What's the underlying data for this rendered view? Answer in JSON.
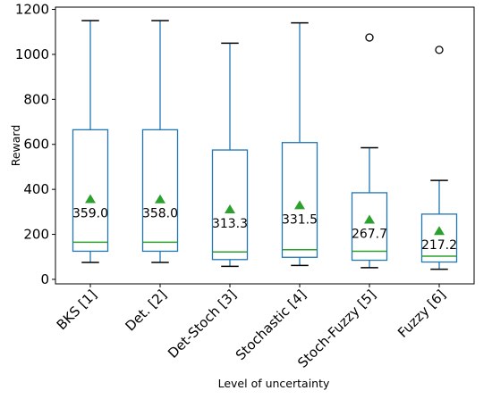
{
  "chart_data": {
    "type": "box",
    "xlabel": "Level of uncertainty",
    "ylabel": "Reward",
    "ylim": [
      -20,
      1210
    ],
    "yticks": [
      0,
      200,
      400,
      600,
      800,
      1000,
      1200
    ],
    "grid": false,
    "legend": "none",
    "categories": [
      "BKS [1]",
      "Det. [2]",
      "Det-Stoch [3]",
      "Stochastic [4]",
      "Stoch-Fuzzy [5]",
      "Fuzzy [6]"
    ],
    "boxes": [
      {
        "whisker_low": 75,
        "q1": 125,
        "median": 165,
        "q3": 665,
        "whisker_high": 1150,
        "mean": 359.0,
        "mean_label": "359.0",
        "outliers": []
      },
      {
        "whisker_low": 75,
        "q1": 125,
        "median": 165,
        "q3": 665,
        "whisker_high": 1150,
        "mean": 358.0,
        "mean_label": "358.0",
        "outliers": []
      },
      {
        "whisker_low": 58,
        "q1": 88,
        "median": 122,
        "q3": 575,
        "whisker_high": 1050,
        "mean": 313.3,
        "mean_label": "313.3",
        "outliers": []
      },
      {
        "whisker_low": 62,
        "q1": 98,
        "median": 132,
        "q3": 608,
        "whisker_high": 1140,
        "mean": 331.5,
        "mean_label": "331.5",
        "outliers": []
      },
      {
        "whisker_low": 52,
        "q1": 85,
        "median": 125,
        "q3": 385,
        "whisker_high": 585,
        "mean": 267.7,
        "mean_label": "267.7",
        "outliers": [
          1075
        ]
      },
      {
        "whisker_low": 45,
        "q1": 77,
        "median": 103,
        "q3": 290,
        "whisker_high": 440,
        "mean": 217.2,
        "mean_label": "217.2",
        "outliers": [
          1020
        ]
      }
    ],
    "colors": {
      "box": "#1f77b4",
      "median": "#2ca02c",
      "mean_marker": "#2ca02c",
      "outlier": "#000000",
      "axis": "#000000"
    }
  }
}
